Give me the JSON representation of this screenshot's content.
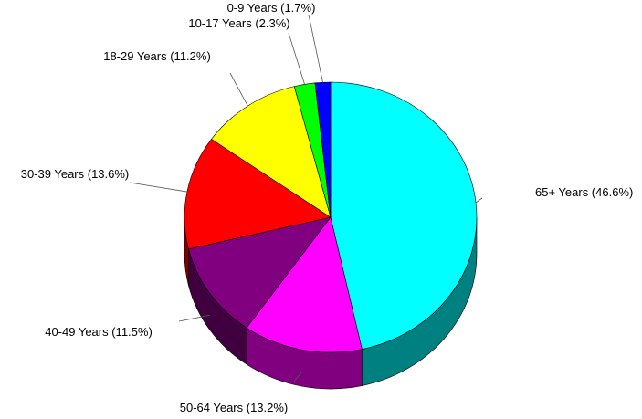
{
  "chart_data": {
    "type": "pie",
    "style": "3d",
    "start": "12 o'clock",
    "direction": "clockwise",
    "slices": [
      {
        "label": "65+ Years (46.6%)",
        "category": "65+ Years",
        "value": 46.6,
        "color": "#00FFFF"
      },
      {
        "label": "50-64 Years (13.2%)",
        "category": "50-64 Years",
        "value": 13.2,
        "color": "#FF00FF"
      },
      {
        "label": "40-49 Years (11.5%)",
        "category": "40-49 Years",
        "value": 11.5,
        "color": "#800080"
      },
      {
        "label": "30-39 Years (13.6%)",
        "category": "30-39 Years",
        "value": 13.6,
        "color": "#FF0000"
      },
      {
        "label": "18-29 Years (11.2%)",
        "category": "18-29 Years",
        "value": 11.2,
        "color": "#FFFF00"
      },
      {
        "label": "10-17 Years (2.3%)",
        "category": "10-17 Years",
        "value": 2.3,
        "color": "#00FF00"
      },
      {
        "label": "0-9 Years (1.7%)",
        "category": "0-9 Years",
        "value": 1.7,
        "color": "#0000FF"
      }
    ]
  }
}
